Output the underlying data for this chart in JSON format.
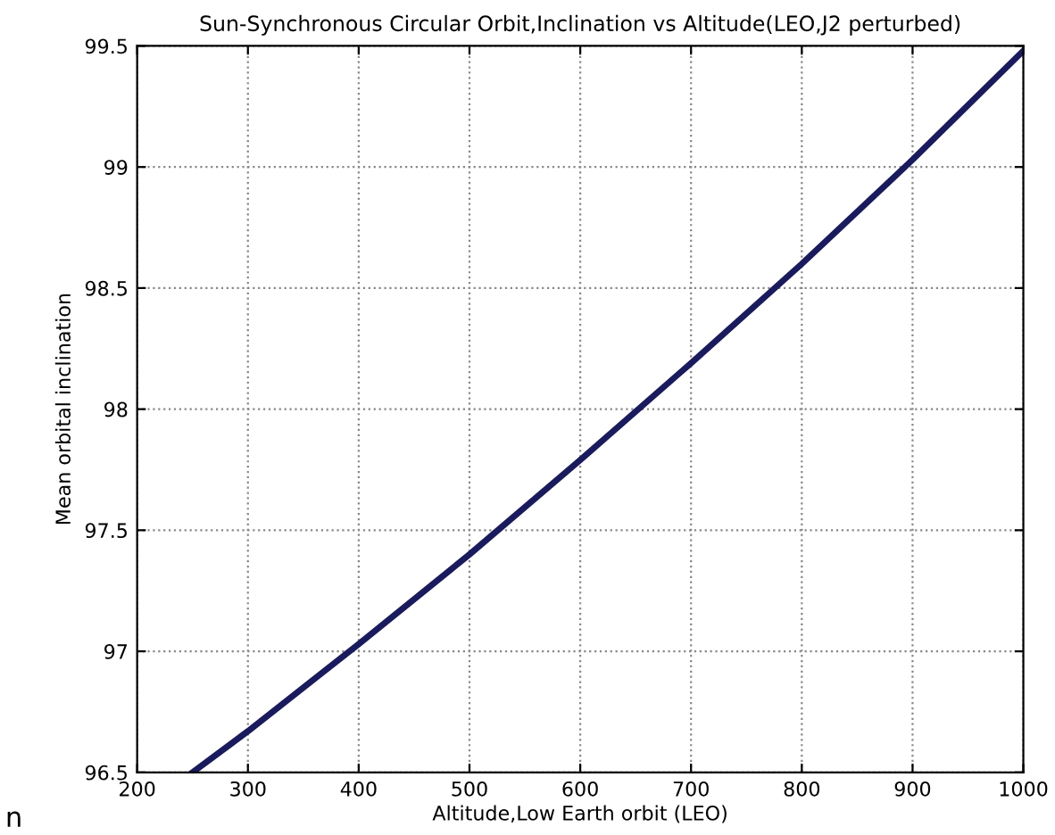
{
  "chart_data": {
    "type": "line",
    "title": "Sun-Synchronous Circular Orbit,Inclination vs Altitude(LEO,J2 perturbed)",
    "xlabel": "Altitude,Low Earth orbit (LEO)",
    "ylabel": "Mean orbital inclination",
    "x": [
      250,
      300,
      400,
      500,
      600,
      700,
      800,
      900,
      1000
    ],
    "series": [
      {
        "color": "#1a1a5e",
        "values": [
          96.5,
          96.67,
          97.03,
          97.4,
          97.79,
          98.19,
          98.6,
          99.03,
          99.48
        ]
      }
    ],
    "xlim": [
      200,
      1000
    ],
    "xticks": [
      200,
      300,
      400,
      500,
      600,
      700,
      800,
      900,
      1000
    ],
    "ylim": [
      96.5,
      99.5
    ],
    "yticks": [
      96.5,
      97,
      97.5,
      98,
      98.5,
      99,
      99.5
    ],
    "grid": true,
    "line_style": "solid",
    "annotations": [
      "n"
    ]
  }
}
